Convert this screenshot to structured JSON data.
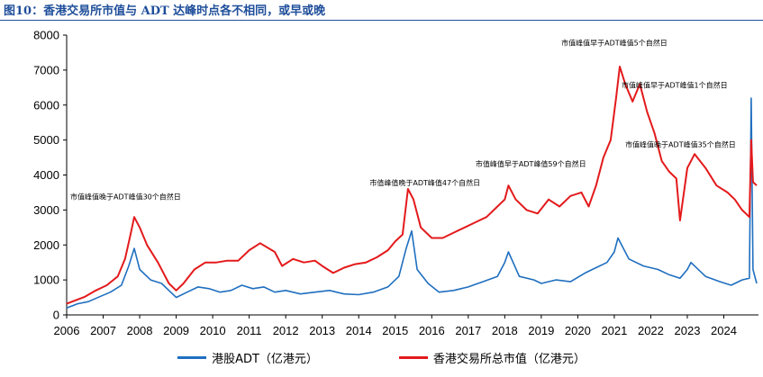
{
  "figure_title": "图10：香港交易所市值与 ADT 达峰时点各不相同，或早或晚",
  "colors": {
    "adt": "#1f6fbf",
    "market_cap": "#e31a1c",
    "title": "#1f4e9a"
  },
  "chart_data": {
    "type": "line",
    "title": "",
    "xlabel": "",
    "ylabel": "",
    "xlim": [
      2006,
      2024.95
    ],
    "ylim": [
      0,
      8000
    ],
    "yticks": [
      0,
      1000,
      2000,
      3000,
      4000,
      5000,
      6000,
      7000,
      8000
    ],
    "xticks": [
      2006,
      2007,
      2008,
      2009,
      2010,
      2011,
      2012,
      2013,
      2014,
      2015,
      2016,
      2017,
      2018,
      2019,
      2020,
      2021,
      2022,
      2023,
      2024
    ],
    "grid": false,
    "legend_position": "bottom",
    "series": [
      {
        "name": "港股ADT（亿港元）",
        "color": "#1f6fbf",
        "x": [
          2006,
          2006.3,
          2006.6,
          2006.9,
          2007.2,
          2007.5,
          2007.7,
          2007.85,
          2008.0,
          2008.3,
          2008.6,
          2008.8,
          2009.0,
          2009.3,
          2009.6,
          2009.9,
          2010.2,
          2010.5,
          2010.8,
          2011.1,
          2011.4,
          2011.7,
          2012.0,
          2012.4,
          2012.8,
          2013.2,
          2013.6,
          2014.0,
          2014.4,
          2014.8,
          2015.1,
          2015.3,
          2015.45,
          2015.6,
          2015.9,
          2016.2,
          2016.6,
          2017.0,
          2017.4,
          2017.8,
          2018.0,
          2018.1,
          2018.4,
          2018.8,
          2019.0,
          2019.4,
          2019.8,
          2020.2,
          2020.5,
          2020.8,
          2021.0,
          2021.1,
          2021.4,
          2021.8,
          2022.2,
          2022.5,
          2022.8,
          2023.0,
          2023.1,
          2023.5,
          2023.9,
          2024.2,
          2024.5,
          2024.7,
          2024.75,
          2024.8,
          2024.9
        ],
        "values": [
          200,
          320,
          380,
          520,
          650,
          850,
          1400,
          1900,
          1300,
          1000,
          900,
          700,
          500,
          650,
          800,
          750,
          650,
          700,
          850,
          750,
          800,
          650,
          700,
          600,
          650,
          700,
          600,
          580,
          650,
          800,
          1100,
          1900,
          2400,
          1300,
          900,
          650,
          700,
          800,
          950,
          1100,
          1500,
          1800,
          1100,
          1000,
          900,
          1000,
          950,
          1200,
          1350,
          1500,
          1800,
          2200,
          1600,
          1400,
          1300,
          1150,
          1050,
          1300,
          1500,
          1100,
          950,
          850,
          1000,
          1050,
          6200,
          1300,
          900
        ]
      },
      {
        "name": "香港交易所总市值（亿港元）",
        "color": "#e31a1c",
        "x": [
          2006,
          2006.2,
          2006.5,
          2006.8,
          2007.1,
          2007.4,
          2007.6,
          2007.75,
          2007.85,
          2008.0,
          2008.2,
          2008.5,
          2008.8,
          2009.0,
          2009.2,
          2009.5,
          2009.8,
          2010.1,
          2010.4,
          2010.7,
          2011.0,
          2011.3,
          2011.7,
          2011.9,
          2012.2,
          2012.5,
          2012.8,
          2013.0,
          2013.3,
          2013.6,
          2013.9,
          2014.2,
          2014.5,
          2014.8,
          2015.0,
          2015.2,
          2015.35,
          2015.5,
          2015.7,
          2016.0,
          2016.3,
          2016.6,
          2016.9,
          2017.2,
          2017.5,
          2017.8,
          2018.0,
          2018.1,
          2018.3,
          2018.6,
          2018.9,
          2019.2,
          2019.5,
          2019.8,
          2020.1,
          2020.3,
          2020.5,
          2020.7,
          2020.9,
          2021.05,
          2021.15,
          2021.3,
          2021.5,
          2021.7,
          2021.9,
          2022.1,
          2022.3,
          2022.5,
          2022.7,
          2022.8,
          2023.0,
          2023.2,
          2023.5,
          2023.8,
          2024.1,
          2024.3,
          2024.5,
          2024.7,
          2024.75,
          2024.8,
          2024.9
        ],
        "values": [
          320,
          400,
          520,
          700,
          850,
          1100,
          1600,
          2300,
          2800,
          2500,
          2000,
          1500,
          900,
          700,
          900,
          1300,
          1500,
          1500,
          1550,
          1550,
          1850,
          2050,
          1800,
          1400,
          1600,
          1500,
          1550,
          1400,
          1200,
          1350,
          1450,
          1500,
          1650,
          1850,
          2100,
          2300,
          3600,
          3300,
          2500,
          2200,
          2200,
          2350,
          2500,
          2650,
          2800,
          3100,
          3300,
          3700,
          3300,
          3000,
          2900,
          3300,
          3100,
          3400,
          3500,
          3100,
          3700,
          4500,
          5000,
          6200,
          7100,
          6600,
          6100,
          6600,
          5800,
          5200,
          4400,
          4100,
          3900,
          2700,
          4200,
          4600,
          4200,
          3700,
          3500,
          3300,
          3000,
          2800,
          5000,
          3800,
          3700
        ]
      }
    ],
    "annotations": [
      {
        "text": "市值峰值晚于ADT峰值30个自然日",
        "x": 2006.1,
        "y": 3300
      },
      {
        "text": "市值峰值晚于ADT峰值47个自然日",
        "x": 2014.3,
        "y": 3700
      },
      {
        "text": "市值峰值早于ADT峰值59个自然日",
        "x": 2017.2,
        "y": 4250
      },
      {
        "text": "市值峰值早于ADT峰值5个自然日",
        "x": 2019.55,
        "y": 7700
      },
      {
        "text": "市值峰值早于ADT峰值1个自然日",
        "x": 2021.2,
        "y": 6500
      },
      {
        "text": "市值峰值晚于ADT峰值35个自然日",
        "x": 2021.3,
        "y": 4800
      }
    ]
  }
}
